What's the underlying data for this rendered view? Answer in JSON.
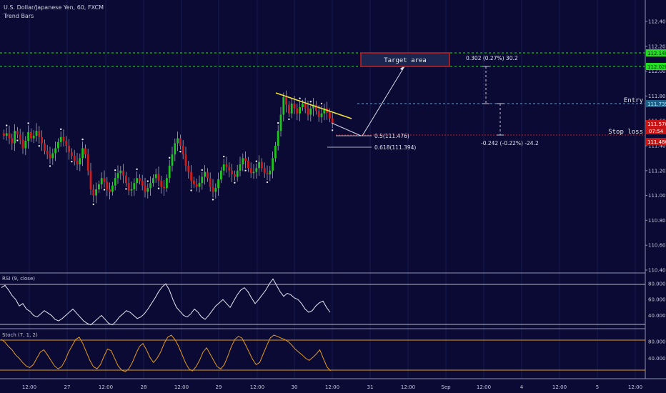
{
  "header": {
    "symbol": "U.S. Dollar/Japanese Yen, 60, FXCM",
    "indicator": "Trend Bars"
  },
  "rsi_label": "RSI (9, close)",
  "stoch_label": "Stoch (7, 1, 2)",
  "colors": {
    "background": "#0a0a35",
    "bull": "#1fc41f",
    "bear": "#d11a1a",
    "rsi": "#e6e6f0",
    "stoch": "#e59a1c",
    "target_line": "#22dd22",
    "stop_line": "#d01818",
    "entry_line": "#6a9fcf",
    "trendline": "#f1e23a"
  },
  "chart_data": [
    {
      "type": "candlestick",
      "x_ticks": [
        "12:00",
        "27",
        "12:00",
        "28",
        "12:00",
        "29",
        "12:00",
        "30",
        "12:00",
        "31",
        "12:00",
        "Sep",
        "12:00",
        "4",
        "12:00",
        "5",
        "12:00"
      ],
      "y_ticks": [
        "112.400",
        "112.200",
        "112.000",
        "111.800",
        "111.600",
        "111.400",
        "111.200",
        "111.000",
        "110.800",
        "110.600",
        "110.400"
      ],
      "ylim": [
        110.4,
        112.52
      ],
      "closes": [
        111.48,
        111.5,
        111.46,
        111.42,
        111.52,
        111.49,
        111.45,
        111.38,
        111.44,
        111.51,
        111.46,
        111.48,
        111.52,
        111.47,
        111.42,
        111.36,
        111.33,
        111.3,
        111.34,
        111.38,
        111.43,
        111.47,
        111.44,
        111.4,
        111.35,
        111.32,
        111.28,
        111.25,
        111.3,
        111.38,
        111.33,
        111.2,
        111.05,
        111.0,
        111.05,
        111.09,
        111.14,
        111.11,
        111.05,
        111.03,
        111.08,
        111.14,
        111.18,
        111.2,
        111.16,
        111.1,
        111.04,
        111.05,
        111.1,
        111.14,
        111.12,
        111.08,
        111.03,
        111.06,
        111.1,
        111.14,
        111.17,
        111.12,
        111.07,
        111.06,
        111.14,
        111.24,
        111.33,
        111.42,
        111.46,
        111.4,
        111.33,
        111.24,
        111.19,
        111.12,
        111.09,
        111.07,
        111.1,
        111.15,
        111.19,
        111.14,
        111.07,
        111.03,
        111.06,
        111.13,
        111.2,
        111.25,
        111.23,
        111.2,
        111.17,
        111.15,
        111.2,
        111.25,
        111.3,
        111.28,
        111.22,
        111.18,
        111.19,
        111.22,
        111.27,
        111.22,
        111.18,
        111.17,
        111.2,
        111.3,
        111.4,
        111.52,
        111.65,
        111.79,
        111.73,
        111.66,
        111.74,
        111.7,
        111.66,
        111.71,
        111.74,
        111.7,
        111.65,
        111.7,
        111.73,
        111.68,
        111.63,
        111.66,
        111.7,
        111.67,
        111.62,
        111.58
      ],
      "target_area_label": "Target area",
      "entry_label": "Entry",
      "stop_label": "Stop loss",
      "target_price": "112.028",
      "upper_price": "112.148",
      "entry_price": "111.735",
      "stop_price": "111.486",
      "last_price": "111.570",
      "countdown": "07:54",
      "fib_labels": [
        "0.5(111.476)",
        "0.618(111.394)"
      ],
      "target_measure": "0.302 (0.27%) 30.2",
      "stop_measure": "-0.242 (-0.22%) -24.2"
    },
    {
      "type": "line",
      "name": "RSI (9, close)",
      "y_ticks": [
        "80.0000",
        "60.0000",
        "40.0000"
      ],
      "ylim": [
        25,
        90
      ],
      "levels": [
        75,
        35
      ],
      "values": [
        75,
        78,
        72,
        65,
        60,
        52,
        55,
        48,
        45,
        40,
        38,
        42,
        46,
        43,
        40,
        35,
        33,
        36,
        40,
        44,
        48,
        43,
        38,
        33,
        30,
        28,
        32,
        36,
        40,
        35,
        30,
        28,
        32,
        38,
        42,
        46,
        44,
        40,
        36,
        38,
        42,
        48,
        55,
        62,
        70,
        76,
        80,
        72,
        60,
        50,
        45,
        40,
        38,
        42,
        48,
        44,
        38,
        35,
        40,
        46,
        52,
        56,
        60,
        55,
        50,
        58,
        66,
        72,
        75,
        70,
        62,
        55,
        60,
        66,
        72,
        80,
        86,
        78,
        70,
        64,
        68,
        66,
        62,
        60,
        55,
        48,
        44,
        46,
        52,
        56,
        58,
        50,
        44
      ]
    },
    {
      "type": "line",
      "name": "Stoch (7, 1, 2)",
      "y_ticks": [
        "80.0000",
        "40.0000"
      ],
      "ylim": [
        -5,
        100
      ],
      "levels": [
        80,
        20
      ],
      "values": [
        85,
        78,
        68,
        60,
        48,
        40,
        30,
        22,
        18,
        25,
        40,
        55,
        60,
        48,
        35,
        22,
        15,
        20,
        35,
        55,
        70,
        85,
        90,
        75,
        55,
        35,
        20,
        15,
        25,
        45,
        62,
        58,
        40,
        22,
        12,
        8,
        15,
        30,
        50,
        68,
        75,
        60,
        42,
        30,
        40,
        55,
        75,
        90,
        95,
        85,
        70,
        50,
        30,
        15,
        10,
        20,
        35,
        55,
        65,
        50,
        35,
        20,
        15,
        25,
        45,
        68,
        85,
        92,
        88,
        72,
        55,
        38,
        25,
        30,
        50,
        70,
        88,
        95,
        92,
        88,
        85,
        80,
        72,
        62,
        55,
        48,
        40,
        35,
        42,
        50,
        60,
        40,
        20,
        10
      ]
    }
  ]
}
